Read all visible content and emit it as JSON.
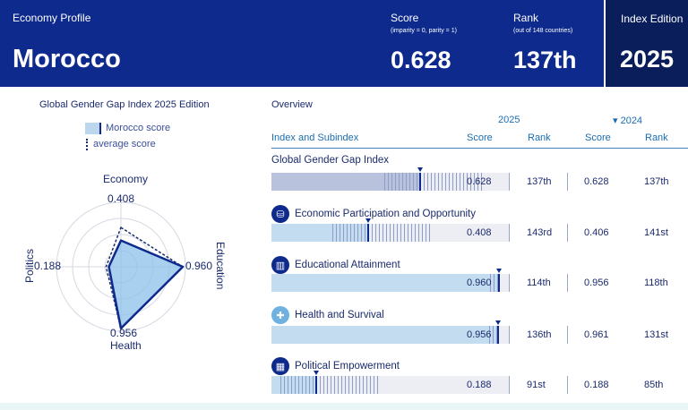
{
  "header": {
    "label": "Economy Profile",
    "country": "Morocco",
    "score_label": "Score",
    "score_sub": "(imparity = 0, parity = 1)",
    "score": "0.628",
    "rank_label": "Rank",
    "rank_sub": "(out of 148 countries)",
    "rank": "137th",
    "edition_label": "Index Edition",
    "edition": "2025"
  },
  "radar": {
    "title": "Global Gender Gap Index 2025 Edition",
    "legend_country": "Morocco score",
    "legend_average": "average score",
    "axes": [
      {
        "name": "Economy",
        "value": 0.408,
        "average": 0.61,
        "label": "0.408"
      },
      {
        "name": "Education",
        "value": 0.96,
        "average": 0.956,
        "label": "0.960"
      },
      {
        "name": "Health",
        "value": 0.956,
        "average": 0.962,
        "label": "0.956"
      },
      {
        "name": "Politics",
        "value": 0.188,
        "average": 0.23,
        "label": "0.188"
      }
    ],
    "colors": {
      "fill": "#8cc0e8",
      "stroke": "#0d2a8c",
      "average": "#1a2a6c"
    }
  },
  "table": {
    "overview": "Overview",
    "year_current": "2025",
    "year_previous": "▾ 2024",
    "col_index": "Index and Subindex",
    "col_score": "Score",
    "col_rank": "Rank",
    "col_score_prev": "Score",
    "col_rank_prev": "Rank",
    "rows": [
      {
        "title": "Global Gender Gap Index",
        "icon": "",
        "score": "0.628",
        "rank": "137th",
        "score_prev": "0.628",
        "rank_prev": "137th",
        "value": 0.628
      },
      {
        "title": "Economic Participation and Opportunity",
        "icon": "coins-icon",
        "score": "0.408",
        "rank": "143rd",
        "score_prev": "0.406",
        "rank_prev": "141st",
        "value": 0.408
      },
      {
        "title": "Educational Attainment",
        "icon": "book-icon",
        "score": "0.960",
        "rank": "114th",
        "score_prev": "0.956",
        "rank_prev": "118th",
        "value": 0.96
      },
      {
        "title": "Health and Survival",
        "icon": "health-cross-icon",
        "score": "0.956",
        "rank": "136th",
        "score_prev": "0.961",
        "rank_prev": "131st",
        "value": 0.956
      },
      {
        "title": "Political Empowerment",
        "icon": "building-icon",
        "score": "0.188",
        "rank": "91st",
        "score_prev": "0.188",
        "rank_prev": "85th",
        "value": 0.188
      }
    ]
  }
}
